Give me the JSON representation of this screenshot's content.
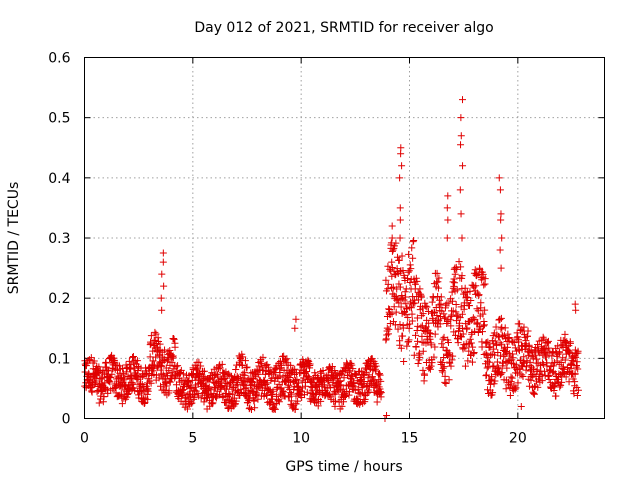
{
  "chart_data": {
    "type": "scatter",
    "title": "Day 012 of 2021, SRMTID for receiver algo",
    "xlabel": "GPS time / hours",
    "ylabel": "SRMTID / TECUs",
    "xlim": [
      0,
      24
    ],
    "ylim": [
      0,
      0.6
    ],
    "xticks": [
      0,
      5,
      10,
      15,
      20
    ],
    "yticks": [
      0,
      0.1,
      0.2,
      0.3,
      0.4,
      0.5,
      0.6
    ],
    "xtick_labels": [
      "0",
      "5",
      "10",
      "15",
      "20"
    ],
    "ytick_labels": [
      "0",
      "0.1",
      "0.2",
      "0.3",
      "0.4",
      "0.5",
      "0.6"
    ],
    "grid": true,
    "marker": "+",
    "color": "#e00000",
    "segments": [
      {
        "t_start": 0.0,
        "t_end": 3.0,
        "baseline": 0.065,
        "spread": 0.03
      },
      {
        "t_start": 3.0,
        "t_end": 4.2,
        "baseline": 0.09,
        "spread": 0.04
      },
      {
        "t_start": 4.2,
        "t_end": 7.0,
        "baseline": 0.055,
        "spread": 0.03
      },
      {
        "t_start": 7.0,
        "t_end": 10.5,
        "baseline": 0.06,
        "spread": 0.035
      },
      {
        "t_start": 10.5,
        "t_end": 12.5,
        "baseline": 0.055,
        "spread": 0.03
      },
      {
        "t_start": 12.5,
        "t_end": 13.7,
        "baseline": 0.06,
        "spread": 0.03
      },
      {
        "t_start": 13.9,
        "t_end": 15.2,
        "baseline": 0.2,
        "spread": 0.08
      },
      {
        "t_start": 15.2,
        "t_end": 17.0,
        "baseline": 0.15,
        "spread": 0.07
      },
      {
        "t_start": 17.0,
        "t_end": 18.5,
        "baseline": 0.17,
        "spread": 0.07
      },
      {
        "t_start": 18.5,
        "t_end": 20.5,
        "baseline": 0.1,
        "spread": 0.05
      },
      {
        "t_start": 20.5,
        "t_end": 22.8,
        "baseline": 0.09,
        "spread": 0.04
      }
    ],
    "peaks": [
      {
        "t": 3.6,
        "values": [
          0.275,
          0.26,
          0.24,
          0.22,
          0.2,
          0.18
        ]
      },
      {
        "t": 9.7,
        "values": [
          0.165,
          0.15
        ]
      },
      {
        "t": 13.9,
        "values": [
          0.005,
          0.0
        ]
      },
      {
        "t": 14.6,
        "values": [
          0.45,
          0.44,
          0.42,
          0.4,
          0.35,
          0.33,
          0.3,
          0.27
        ]
      },
      {
        "t": 14.2,
        "values": [
          0.32,
          0.3,
          0.28,
          0.26
        ]
      },
      {
        "t": 16.8,
        "values": [
          0.37,
          0.35,
          0.33,
          0.3
        ]
      },
      {
        "t": 17.4,
        "values": [
          0.53,
          0.5,
          0.47,
          0.455,
          0.42,
          0.38,
          0.34,
          0.3
        ]
      },
      {
        "t": 19.2,
        "values": [
          0.4,
          0.38,
          0.34,
          0.33,
          0.3,
          0.28,
          0.25
        ]
      },
      {
        "t": 20.1,
        "values": [
          0.02
        ]
      },
      {
        "t": 22.7,
        "values": [
          0.19,
          0.18
        ]
      }
    ]
  }
}
